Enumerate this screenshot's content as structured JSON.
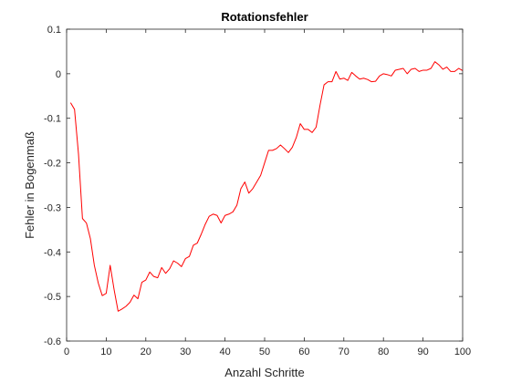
{
  "chart_data": {
    "type": "line",
    "title": "Rotationsfehler",
    "xlabel": "Anzahl Schritte",
    "ylabel": "Fehler in Bogenmaß",
    "xlim": [
      0,
      100
    ],
    "ylim": [
      -0.6,
      0.1
    ],
    "xticks": [
      "0",
      "10",
      "20",
      "30",
      "40",
      "50",
      "60",
      "70",
      "80",
      "90",
      "100"
    ],
    "yticks": [
      "0.1",
      "0",
      "-0.1",
      "-0.2",
      "-0.3",
      "-0.4",
      "-0.5",
      "-0.6"
    ],
    "grid": false,
    "line_color": "#ff0000",
    "x": [
      1,
      2,
      3,
      4,
      5,
      6,
      7,
      8,
      9,
      10,
      11,
      12,
      13,
      14,
      15,
      16,
      17,
      18,
      19,
      20,
      21,
      22,
      23,
      24,
      25,
      26,
      27,
      28,
      29,
      30,
      31,
      32,
      33,
      34,
      35,
      36,
      37,
      38,
      39,
      40,
      41,
      42,
      43,
      44,
      45,
      46,
      47,
      48,
      49,
      50,
      51,
      52,
      53,
      54,
      55,
      56,
      57,
      58,
      59,
      60,
      61,
      62,
      63,
      64,
      65,
      66,
      67,
      68,
      69,
      70,
      71,
      72,
      73,
      74,
      75,
      76,
      77,
      78,
      79,
      80,
      81,
      82,
      83,
      84,
      85,
      86,
      87,
      88,
      89,
      90,
      91,
      92,
      93,
      94,
      95,
      96,
      97,
      98,
      99,
      100
    ],
    "y": [
      -0.065,
      -0.08,
      -0.18,
      -0.325,
      -0.335,
      -0.37,
      -0.43,
      -0.47,
      -0.498,
      -0.493,
      -0.43,
      -0.485,
      -0.533,
      -0.528,
      -0.522,
      -0.513,
      -0.497,
      -0.505,
      -0.468,
      -0.463,
      -0.445,
      -0.455,
      -0.458,
      -0.435,
      -0.448,
      -0.438,
      -0.42,
      -0.425,
      -0.433,
      -0.415,
      -0.41,
      -0.385,
      -0.38,
      -0.36,
      -0.338,
      -0.32,
      -0.315,
      -0.318,
      -0.335,
      -0.318,
      -0.315,
      -0.31,
      -0.295,
      -0.258,
      -0.243,
      -0.268,
      -0.258,
      -0.243,
      -0.228,
      -0.2,
      -0.172,
      -0.172,
      -0.168,
      -0.16,
      -0.168,
      -0.177,
      -0.165,
      -0.143,
      -0.112,
      -0.125,
      -0.125,
      -0.132,
      -0.12,
      -0.07,
      -0.025,
      -0.018,
      -0.018,
      0.005,
      -0.012,
      -0.01,
      -0.015,
      0.003,
      -0.005,
      -0.012,
      -0.01,
      -0.013,
      -0.018,
      -0.017,
      -0.005,
      0.0,
      -0.002,
      -0.005,
      0.008,
      0.01,
      0.012,
      0.0,
      0.01,
      0.012,
      0.005,
      0.008,
      0.008,
      0.012,
      0.027,
      0.02,
      0.01,
      0.015,
      0.005,
      0.005,
      0.012,
      0.007
    ]
  }
}
